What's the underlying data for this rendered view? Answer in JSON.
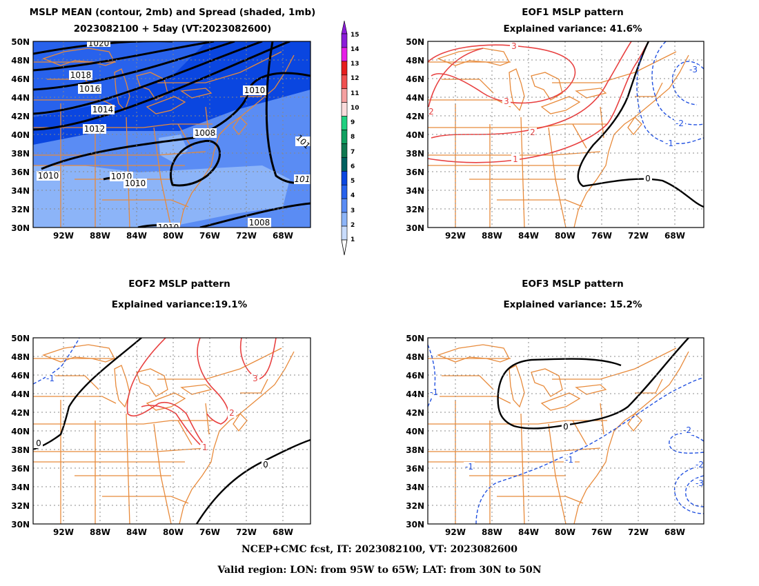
{
  "panels": [
    {
      "id": "mean",
      "title_line1": "MSLP MEAN (contour, 2mb) and Spread (shaded, 1mb)",
      "title_line2": "2023082100 + 5day (VT:2023082600)",
      "contour_labels": [
        "1020",
        "1018",
        "1016",
        "1014",
        "1012",
        "1010",
        "1010",
        "1010",
        "1010",
        "1008",
        "1008",
        "1010",
        "101",
        "101"
      ]
    },
    {
      "id": "eof1",
      "title_line1": "EOF1 MSLP pattern",
      "title_line2": "Explained variance: 41.6%",
      "contour_labels": [
        "3",
        "3",
        "2",
        "2",
        "1",
        "0",
        "-3",
        "-2",
        "-1"
      ]
    },
    {
      "id": "eof2",
      "title_line1": "EOF2 MSLP pattern",
      "title_line2": "Explained variance:19.1%",
      "contour_labels": [
        "-1",
        "0",
        "3",
        "2",
        "1",
        "0"
      ]
    },
    {
      "id": "eof3",
      "title_line1": "EOF3 MSLP pattern",
      "title_line2": "Explained variance: 15.2%",
      "contour_labels": [
        "-1",
        "0",
        "-1",
        "-1",
        "-2",
        "-2",
        "-3"
      ]
    }
  ],
  "axes": {
    "lat_labels": [
      "50N",
      "48N",
      "46N",
      "44N",
      "42N",
      "40N",
      "38N",
      "36N",
      "34N",
      "32N",
      "30N"
    ],
    "lon_labels": [
      "92W",
      "88W",
      "84W",
      "80W",
      "76W",
      "72W",
      "68W"
    ]
  },
  "colorbar": {
    "labels": [
      "15",
      "14",
      "13",
      "12",
      "11",
      "10",
      "9",
      "8",
      "7",
      "6",
      "5",
      "4",
      "3",
      "2",
      "1"
    ],
    "colors": [
      "#8a1cd8",
      "#e61ee6",
      "#e61e1e",
      "#f05050",
      "#f5a0a0",
      "#fadcdc",
      "#20d080",
      "#10a060",
      "#107850",
      "#006060",
      "#0a46e0",
      "#2862ec",
      "#5a8cf4",
      "#8cb4f8",
      "#c8dcfc"
    ]
  },
  "colors": {
    "coast": "#e88a3a",
    "positive": "#e84040",
    "negative": "#2050e0",
    "zero": "#000000"
  },
  "footer": {
    "line1": "NCEP+CMC fcst, IT: 2023082100, VT: 2023082600",
    "line2": "Valid region: LON: from 95W to 65W; LAT: from 30N to 50N"
  }
}
